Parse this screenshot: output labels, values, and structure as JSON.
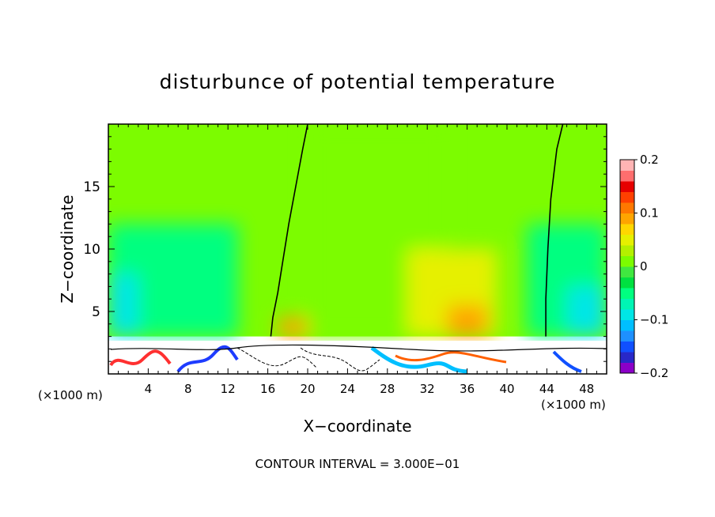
{
  "chart_data": {
    "type": "heatmap",
    "title": "disturbunce of potential temperature",
    "xlabel": "X−coordinate",
    "ylabel": "Z−coordinate",
    "x_unit_left": "(×1000 m)",
    "x_unit_right": "(×1000 m)",
    "xlim": [
      0,
      50
    ],
    "ylim": [
      0,
      20
    ],
    "x_ticks": [
      4,
      8,
      12,
      16,
      20,
      24,
      28,
      32,
      36,
      40,
      44,
      48
    ],
    "y_ticks": [
      5,
      10,
      15
    ],
    "footer": "CONTOUR INTERVAL = 3.000E−01",
    "colorbar": {
      "min": -0.2,
      "max": 0.2,
      "tick_values": [
        0.2,
        0.1,
        0,
        -0.1,
        -0.2
      ],
      "tick_labels": [
        "0.2",
        "0.1",
        "0",
        "−0.1",
        "−0.2"
      ],
      "colors": [
        "#8b00c8",
        "#2828c8",
        "#1050ff",
        "#1e90ff",
        "#00bfff",
        "#00e6e6",
        "#00f5b4",
        "#00ff80",
        "#00e040",
        "#40e840",
        "#7cfc00",
        "#b4f000",
        "#e6f000",
        "#ffd700",
        "#ffa500",
        "#ff7800",
        "#ff4000",
        "#e60000",
        "#ff6e6e",
        "#ffb4b4"
      ]
    },
    "field_regions": [
      {
        "x": [
          0,
          50
        ],
        "z": [
          3,
          20
        ],
        "value": 0.0
      },
      {
        "x": [
          0,
          13
        ],
        "z": [
          3,
          12
        ],
        "value": -0.05
      },
      {
        "x": [
          0,
          3
        ],
        "z": [
          3,
          8
        ],
        "value": -0.09
      },
      {
        "x": [
          42,
          50
        ],
        "z": [
          3,
          12
        ],
        "value": -0.05
      },
      {
        "x": [
          46,
          50
        ],
        "z": [
          3,
          7
        ],
        "value": -0.09
      },
      {
        "x": [
          20,
          34
        ],
        "z": [
          3,
          20
        ],
        "value": 0.02
      },
      {
        "x": [
          30,
          39
        ],
        "z": [
          3,
          10
        ],
        "value": 0.04
      },
      {
        "x": [
          34,
          38
        ],
        "z": [
          3,
          5.5
        ],
        "value": 0.08
      },
      {
        "x": [
          17,
          20
        ],
        "z": [
          3,
          4.5
        ],
        "value": 0.08
      }
    ],
    "contour_lines": [
      {
        "x": [
          16.3,
          16.5,
          17.0,
          17.5,
          18.1,
          18.8,
          19.5,
          20.0
        ],
        "z": [
          3.0,
          4.5,
          6.5,
          9.0,
          12.0,
          15.0,
          18.0,
          20.0
        ]
      },
      {
        "x": [
          43.9,
          43.9,
          44.1,
          44.4,
          45.0,
          45.6
        ],
        "z": [
          3.0,
          6.0,
          10.0,
          14.0,
          18.0,
          20.0
        ]
      }
    ]
  }
}
